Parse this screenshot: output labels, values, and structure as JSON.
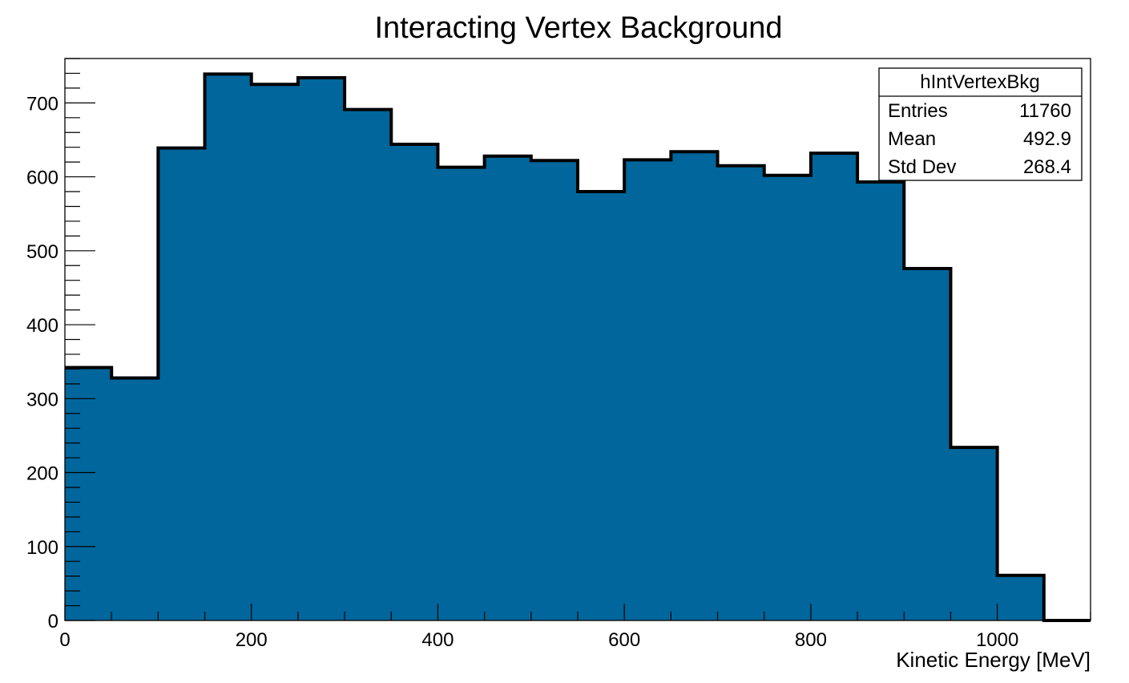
{
  "chart_data": {
    "type": "bar",
    "title": "Interacting Vertex Background",
    "xlabel": "Kinetic Energy [MeV]",
    "ylabel": "",
    "xlim": [
      0,
      1100
    ],
    "ylim": [
      0,
      760
    ],
    "bin_width": 50,
    "bin_edges": [
      0,
      50,
      100,
      150,
      200,
      250,
      300,
      350,
      400,
      450,
      500,
      550,
      600,
      650,
      700,
      750,
      800,
      850,
      900,
      950,
      1000,
      1050,
      1100
    ],
    "values": [
      342,
      328,
      639,
      739,
      725,
      734,
      691,
      644,
      613,
      628,
      622,
      580,
      623,
      634,
      615,
      602,
      632,
      593,
      476,
      234,
      61,
      0
    ],
    "x_ticks": [
      "0",
      "200",
      "400",
      "600",
      "800",
      "1000"
    ],
    "y_ticks": [
      "0",
      "100",
      "200",
      "300",
      "400",
      "500",
      "600",
      "700"
    ],
    "fill_color": "#00669b",
    "line_color": "#000000",
    "grid": false,
    "legend_placement": "top-right",
    "stats_box": {
      "name": "hIntVertexBkg",
      "rows": [
        {
          "label": "Entries",
          "value": "11760"
        },
        {
          "label": "Mean",
          "value": "492.9"
        },
        {
          "label": "Std Dev",
          "value": "268.4"
        }
      ]
    }
  }
}
